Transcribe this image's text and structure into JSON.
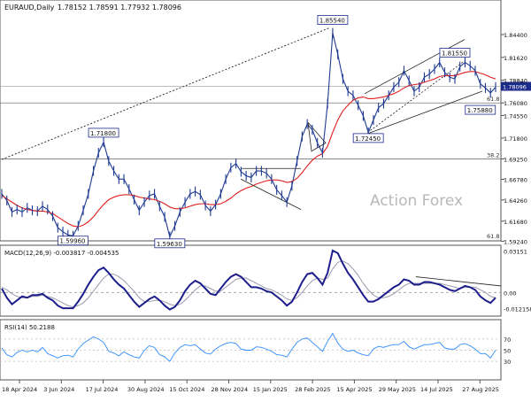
{
  "header": {
    "symbol": "EURAUD,Daily",
    "ohlc": "1.78152 1.78591 1.77932 1.78096"
  },
  "watermark": "Action Forex",
  "colors": {
    "price": "#1f3a93",
    "ma": "#e02020",
    "macd": "#1c1c8c",
    "signal": "#9a9aae",
    "rsi": "#2f8cff",
    "grid": "#9a9a9a",
    "trend": "#222222",
    "currentPriceBox": "#1c2a8a"
  },
  "chart_data": [
    {
      "type": "line",
      "panel": "price",
      "title": "EURAUD,Daily",
      "ylim": [
        1.595,
        1.871
      ],
      "y_ticks": [
        "1.84400",
        "1.81620",
        "1.78840",
        "1.76080",
        "1.74550",
        "1.71800",
        "1.69250",
        "1.66780",
        "1.64260",
        "1.61680",
        "1.59240"
      ],
      "current_price": "1.78096",
      "x_labels": [
        "18 Apr 2024",
        "3 Jun 2024",
        "17 Jul 2024",
        "30 Aug 2024",
        "15 Oct 2024",
        "28 Nov 2024",
        "15 Jan 2025",
        "28 Feb 2025",
        "15 Apr 2025",
        "29 May 2025",
        "14 Jul 2025",
        "27 Aug 2025"
      ],
      "series": [
        {
          "role": "price",
          "values": [
            1.65,
            1.642,
            1.628,
            1.631,
            1.628,
            1.633,
            1.63,
            1.629,
            1.635,
            1.631,
            1.623,
            1.609,
            1.604,
            1.6,
            1.599,
            1.611,
            1.63,
            1.65,
            1.678,
            1.7,
            1.713,
            1.69,
            1.678,
            1.668,
            1.668,
            1.656,
            1.643,
            1.63,
            1.64,
            1.648,
            1.65,
            1.635,
            1.622,
            1.598,
            1.611,
            1.628,
            1.64,
            1.65,
            1.653,
            1.649,
            1.636,
            1.629,
            1.637,
            1.65,
            1.668,
            1.682,
            1.687,
            1.677,
            1.672,
            1.67,
            1.678,
            1.678,
            1.675,
            1.668,
            1.655,
            1.648,
            1.64,
            1.66,
            1.69,
            1.72,
            1.735,
            1.728,
            1.712,
            1.7,
            1.76,
            1.846,
            1.82,
            1.79,
            1.775,
            1.77,
            1.758,
            1.745,
            1.725,
            1.74,
            1.755,
            1.76,
            1.77,
            1.78,
            1.786,
            1.8,
            1.788,
            1.775,
            1.78,
            1.792,
            1.796,
            1.802,
            1.81,
            1.798,
            1.792,
            1.79,
            1.805,
            1.81,
            1.806,
            1.8,
            1.784,
            1.779,
            1.773,
            1.78
          ]
        },
        {
          "role": "moving-average",
          "values": [
            1.648,
            1.644,
            1.64,
            1.636,
            1.633,
            1.631,
            1.63,
            1.629,
            1.629,
            1.628,
            1.626,
            1.622,
            1.618,
            1.614,
            1.611,
            1.61,
            1.612,
            1.616,
            1.622,
            1.63,
            1.637,
            1.643,
            1.646,
            1.648,
            1.649,
            1.649,
            1.648,
            1.646,
            1.645,
            1.644,
            1.643,
            1.641,
            1.638,
            1.634,
            1.632,
            1.632,
            1.633,
            1.635,
            1.637,
            1.638,
            1.638,
            1.637,
            1.637,
            1.638,
            1.641,
            1.645,
            1.65,
            1.654,
            1.657,
            1.659,
            1.662,
            1.664,
            1.666,
            1.667,
            1.667,
            1.666,
            1.664,
            1.665,
            1.669,
            1.676,
            1.684,
            1.691,
            1.696,
            1.699,
            1.708,
            1.725,
            1.74,
            1.751,
            1.758,
            1.764,
            1.767,
            1.768,
            1.766,
            1.766,
            1.767,
            1.768,
            1.77,
            1.772,
            1.775,
            1.779,
            1.782,
            1.783,
            1.784,
            1.786,
            1.788,
            1.79,
            1.793,
            1.794,
            1.794,
            1.794,
            1.796,
            1.798,
            1.799,
            1.799,
            1.797,
            1.795,
            1.792,
            1.79
          ]
        }
      ],
      "annotations": [
        {
          "text": "1.85540",
          "x": 65,
          "y": 1.8554,
          "kind": "high"
        },
        {
          "text": "1.81550",
          "x": 89,
          "y": 1.8155,
          "kind": "high"
        },
        {
          "text": "1.71800",
          "x": 20,
          "y": 1.718,
          "kind": "high"
        },
        {
          "text": "1.72450",
          "x": 72,
          "y": 1.7245,
          "kind": "low"
        },
        {
          "text": "1.75880",
          "x": 94,
          "y": 1.7588,
          "kind": "low"
        },
        {
          "text": "1.59960",
          "x": 14,
          "y": 1.5996,
          "kind": "low"
        },
        {
          "text": "1.59630",
          "x": 33,
          "y": 1.5963,
          "kind": "low"
        }
      ],
      "fib_levels": [
        {
          "text": "38.2",
          "y": 1.6925
        },
        {
          "text": "61.8",
          "y": 1.7608
        },
        {
          "text": "61.8",
          "y": 1.594
        }
      ]
    },
    {
      "type": "line",
      "panel": "macd",
      "title": "MACD(12,26,9) -0.003817 -0.004535",
      "ylim": [
        -0.016,
        0.034
      ],
      "y_ticks": [
        "0.03151",
        "0.00",
        "-0.012158"
      ],
      "series": [
        {
          "role": "macd",
          "values": [
            0.003,
            -0.004,
            -0.009,
            -0.006,
            -0.003,
            -0.004,
            -0.002,
            -0.002,
            -0.001,
            -0.004,
            -0.006,
            -0.01,
            -0.012,
            -0.012,
            -0.012,
            -0.007,
            -0.001,
            0.006,
            0.012,
            0.017,
            0.019,
            0.015,
            0.01,
            0.006,
            0.003,
            -0.002,
            -0.007,
            -0.011,
            -0.008,
            -0.005,
            -0.003,
            -0.006,
            -0.01,
            -0.013,
            -0.011,
            -0.006,
            0.001,
            0.006,
            0.009,
            0.007,
            0.003,
            -0.001,
            -0.002,
            0.003,
            0.008,
            0.012,
            0.014,
            0.012,
            0.008,
            0.004,
            0.004,
            0.003,
            0.001,
            0.0,
            -0.003,
            -0.006,
            -0.01,
            -0.007,
            0.0,
            0.008,
            0.014,
            0.015,
            0.011,
            0.006,
            0.015,
            0.032,
            0.03,
            0.022,
            0.015,
            0.01,
            0.004,
            -0.002,
            -0.007,
            -0.007,
            -0.005,
            -0.002,
            0.001,
            0.004,
            0.006,
            0.01,
            0.009,
            0.006,
            0.006,
            0.008,
            0.008,
            0.007,
            0.006,
            0.004,
            0.002,
            0.001,
            0.003,
            0.005,
            0.004,
            0.002,
            -0.003,
            -0.006,
            -0.008,
            -0.004
          ]
        },
        {
          "role": "signal",
          "values": [
            0.004,
            0.002,
            -0.001,
            -0.003,
            -0.004,
            -0.004,
            -0.003,
            -0.003,
            -0.002,
            -0.003,
            -0.004,
            -0.006,
            -0.008,
            -0.01,
            -0.011,
            -0.01,
            -0.008,
            -0.004,
            0.001,
            0.006,
            0.011,
            0.014,
            0.014,
            0.012,
            0.009,
            0.005,
            0.001,
            -0.004,
            -0.007,
            -0.007,
            -0.006,
            -0.006,
            -0.007,
            -0.009,
            -0.01,
            -0.009,
            -0.006,
            -0.002,
            0.002,
            0.005,
            0.005,
            0.003,
            0.001,
            0.001,
            0.004,
            0.007,
            0.01,
            0.011,
            0.011,
            0.009,
            0.007,
            0.005,
            0.003,
            0.002,
            0.0,
            -0.002,
            -0.005,
            -0.006,
            -0.004,
            0.0,
            0.005,
            0.009,
            0.011,
            0.01,
            0.011,
            0.018,
            0.023,
            0.024,
            0.022,
            0.018,
            0.013,
            0.007,
            0.002,
            -0.002,
            -0.004,
            -0.004,
            -0.003,
            -0.001,
            0.002,
            0.005,
            0.007,
            0.007,
            0.007,
            0.007,
            0.007,
            0.007,
            0.007,
            0.006,
            0.005,
            0.004,
            0.003,
            0.004,
            0.004,
            0.004,
            0.002,
            0.0,
            -0.003,
            -0.004
          ]
        }
      ]
    },
    {
      "type": "line",
      "panel": "rsi",
      "title": "RSI(14) 50.2188",
      "ylim": [
        0,
        100
      ],
      "y_ticks": [
        "70",
        "50",
        "30"
      ],
      "series": [
        {
          "role": "rsi",
          "values": [
            54,
            42,
            38,
            46,
            50,
            47,
            50,
            47,
            55,
            44,
            40,
            36,
            40,
            41,
            38,
            52,
            62,
            68,
            74,
            70,
            64,
            48,
            45,
            40,
            47,
            42,
            38,
            36,
            50,
            58,
            55,
            42,
            38,
            30,
            45,
            55,
            60,
            58,
            60,
            52,
            45,
            43,
            52,
            58,
            62,
            64,
            62,
            52,
            50,
            50,
            56,
            55,
            52,
            48,
            42,
            41,
            38,
            52,
            64,
            70,
            72,
            64,
            56,
            48,
            66,
            80,
            63,
            52,
            48,
            50,
            45,
            42,
            40,
            52,
            57,
            55,
            58,
            60,
            60,
            66,
            56,
            52,
            56,
            60,
            60,
            62,
            64,
            54,
            52,
            52,
            60,
            62,
            58,
            52,
            44,
            44,
            36,
            50
          ]
        }
      ]
    }
  ]
}
